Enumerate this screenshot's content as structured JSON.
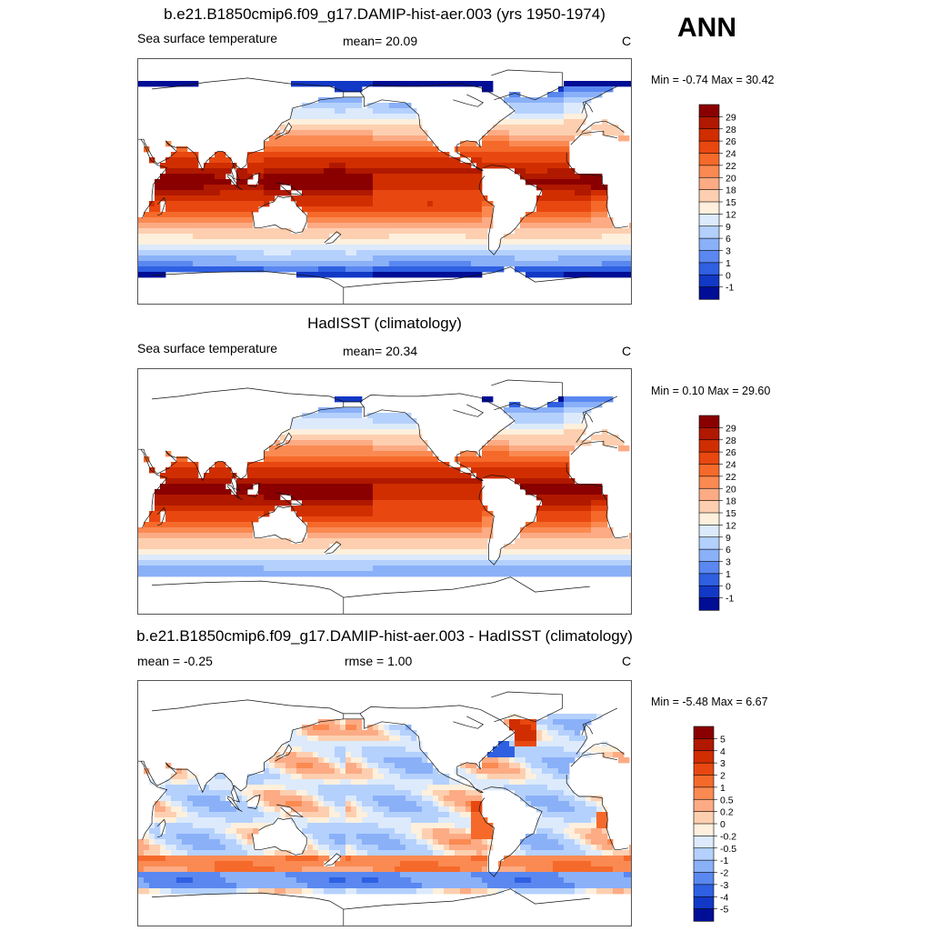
{
  "season": "ANN",
  "panels": [
    {
      "id": "model",
      "title": "b.e21.B1850cmip6.f09_g17.DAMIP-hist-aer.003 (yrs 1950-1974)",
      "left_label": "Sea surface temperature",
      "center_label": "mean=  20.09",
      "units": "C",
      "minmax": "Min =  -0.74 Max =  30.42",
      "variable": "sst",
      "colorbar": {
        "labels": [
          "29",
          "28",
          "26",
          "24",
          "22",
          "20",
          "18",
          "15",
          "12",
          "9",
          "6",
          "3",
          "1",
          "0",
          "-1"
        ],
        "colors": [
          "#8a0000",
          "#b01800",
          "#d02e00",
          "#e84810",
          "#f56a2a",
          "#fa8a52",
          "#fcab84",
          "#fdcfb0",
          "#fef0dc",
          "#dceafc",
          "#b4d0fc",
          "#8ab0f8",
          "#5a88f0",
          "#2f60e2",
          "#1238c6",
          "#000e95"
        ]
      }
    },
    {
      "id": "obs",
      "title": "HadISST (climatology)",
      "left_label": "Sea surface temperature",
      "center_label": "mean=  20.34",
      "units": "C",
      "minmax": "Min =   0.10 Max =  29.60",
      "variable": "sst",
      "colorbar": {
        "labels": [
          "29",
          "28",
          "26",
          "24",
          "22",
          "20",
          "18",
          "15",
          "12",
          "9",
          "6",
          "3",
          "1",
          "0",
          "-1"
        ],
        "colors": [
          "#8a0000",
          "#b01800",
          "#d02e00",
          "#e84810",
          "#f56a2a",
          "#fa8a52",
          "#fcab84",
          "#fdcfb0",
          "#fef0dc",
          "#dceafc",
          "#b4d0fc",
          "#8ab0f8",
          "#5a88f0",
          "#2f60e2",
          "#1238c6",
          "#000e95"
        ]
      }
    },
    {
      "id": "diff",
      "title": "b.e21.B1850cmip6.f09_g17.DAMIP-hist-aer.003 - HadISST (climatology)",
      "left_label": "mean =  -0.25",
      "center_label": "rmse =   1.00",
      "units": "C",
      "minmax": "Min =  -5.48 Max =   6.67",
      "variable": "diff",
      "colorbar": {
        "labels": [
          "5",
          "4",
          "3",
          "2",
          "1",
          "0.5",
          "0.2",
          "0",
          "-0.2",
          "-0.5",
          "-1",
          "-2",
          "-3",
          "-4",
          "-5"
        ],
        "colors": [
          "#8a0000",
          "#b01800",
          "#d02e00",
          "#e84810",
          "#f56a2a",
          "#fa8a52",
          "#fcab84",
          "#fdcfb0",
          "#fef0dc",
          "#dceafc",
          "#b4d0fc",
          "#8ab0f8",
          "#5a88f0",
          "#2f60e2",
          "#1238c6",
          "#000e95"
        ]
      }
    }
  ]
}
